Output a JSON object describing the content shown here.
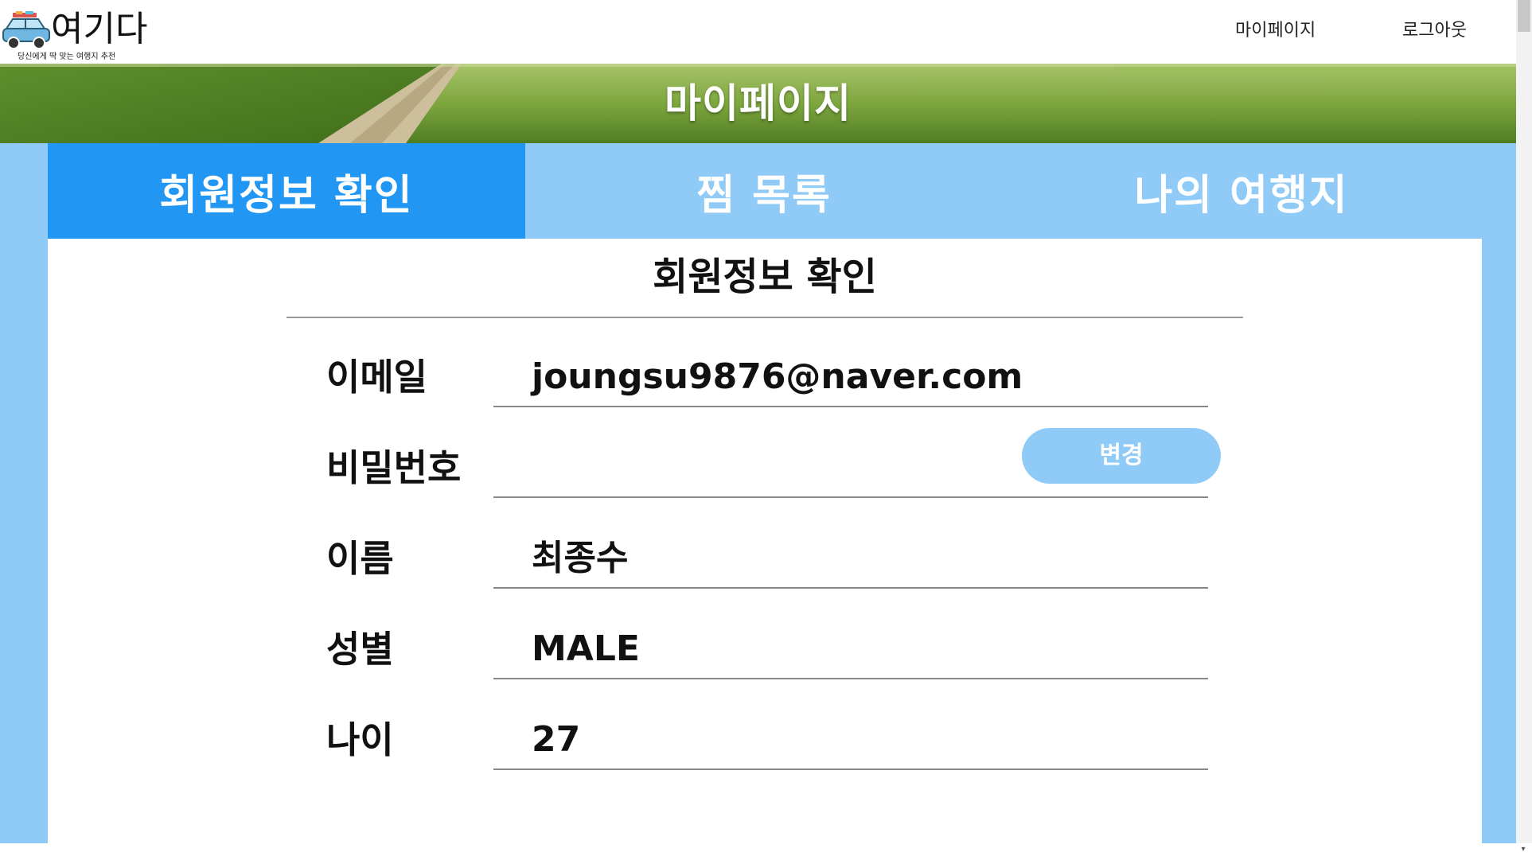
{
  "header": {
    "logo_title": "여기다",
    "logo_subtitle": "당신에게 딱 맞는 여행지 추천",
    "logo_icon": "car-icon",
    "nav": {
      "mypage_label": "마이페이지",
      "logout_label": "로그아웃"
    }
  },
  "banner": {
    "title": "마이페이지"
  },
  "tabs": [
    {
      "label": "회원정보 확인",
      "active": true
    },
    {
      "label": "찜 목록",
      "active": false
    },
    {
      "label": "나의 여행지",
      "active": false
    }
  ],
  "profile": {
    "section_title": "회원정보 확인",
    "email": {
      "label": "이메일",
      "value": "joungsu9876@naver.com"
    },
    "password": {
      "label": "비밀번호",
      "value": "",
      "button_label": "변경"
    },
    "name": {
      "label": "이름",
      "value": "최종수"
    },
    "gender": {
      "label": "성별",
      "value": "MALE"
    },
    "age": {
      "label": "나이",
      "value": "27"
    }
  },
  "colors": {
    "accent": "#2196f3",
    "accent_light": "#90caf6",
    "white": "#ffffff"
  }
}
